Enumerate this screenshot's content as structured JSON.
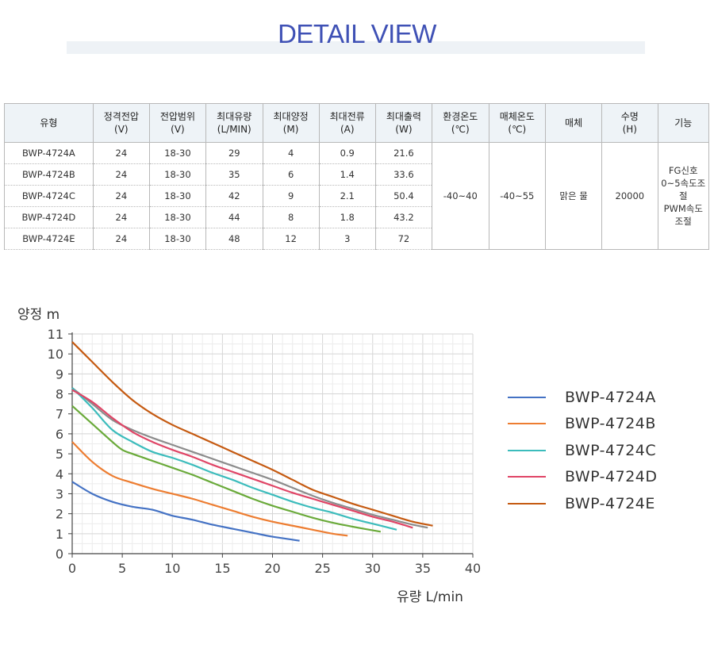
{
  "header": {
    "title": "DETAIL VIEW"
  },
  "table": {
    "headers": [
      [
        "유형",
        ""
      ],
      [
        "정격전압",
        "(V)"
      ],
      [
        "전압범위",
        "(V)"
      ],
      [
        "최대유량",
        "(L/MIN)"
      ],
      [
        "최대양정",
        "(M)"
      ],
      [
        "최대전류",
        "(A)"
      ],
      [
        "최대출력",
        "(W)"
      ],
      [
        "환경온도",
        "(℃)"
      ],
      [
        "매체온도",
        "(℃)"
      ],
      [
        "매체",
        ""
      ],
      [
        "수명",
        "(H)"
      ],
      [
        "기능",
        ""
      ]
    ],
    "rows": [
      [
        "BWP-4724A",
        "24",
        "18-30",
        "29",
        "4",
        "0.9",
        "21.6"
      ],
      [
        "BWP-4724B",
        "24",
        "18-30",
        "35",
        "6",
        "1.4",
        "33.6"
      ],
      [
        "BWP-4724C",
        "24",
        "18-30",
        "42",
        "9",
        "2.1",
        "50.4"
      ],
      [
        "BWP-4724D",
        "24",
        "18-30",
        "44",
        "8",
        "1.8",
        "43.2"
      ],
      [
        "BWP-4724E",
        "24",
        "18-30",
        "48",
        "12",
        "3",
        "72"
      ]
    ],
    "shared": {
      "ambient_temp": "-40~40",
      "media_temp": "-40~55",
      "media": "맑은 물",
      "life": "20000",
      "function_lines": [
        "FG신호",
        "0~5속도조",
        "절",
        "PWM속도",
        "조절"
      ]
    }
  },
  "chart_data": {
    "type": "line",
    "ylabel": "양정 m",
    "xlabel": "유량 L/min",
    "xlim": [
      0,
      40
    ],
    "ylim": [
      0,
      11
    ],
    "xticks": [
      0,
      5,
      10,
      15,
      20,
      25,
      30,
      35,
      40
    ],
    "yticks": [
      0,
      1,
      2,
      3,
      4,
      5,
      6,
      7,
      8,
      9,
      10,
      11
    ],
    "grid": true,
    "legend_position": "right",
    "series": [
      {
        "name": "BWP-4724A",
        "color": "#4472c4",
        "x": [
          0,
          2,
          4,
          6,
          8,
          10,
          12,
          14,
          16,
          18,
          20,
          22.7
        ],
        "y": [
          3.6,
          3.0,
          2.6,
          2.35,
          2.2,
          1.9,
          1.7,
          1.45,
          1.25,
          1.05,
          0.85,
          0.65
        ]
      },
      {
        "name": "BWP-4724B",
        "color": "#ed7d31",
        "x": [
          0,
          2,
          4,
          6,
          8,
          10,
          12,
          14,
          16,
          18,
          20,
          22,
          24,
          26,
          27.5
        ],
        "y": [
          5.6,
          4.6,
          3.9,
          3.55,
          3.25,
          3.0,
          2.75,
          2.45,
          2.15,
          1.85,
          1.6,
          1.4,
          1.2,
          1.0,
          0.9
        ]
      },
      {
        "name": "BWP-4724C",
        "color": "#3cbcbc",
        "x": [
          0,
          2,
          4,
          6,
          8,
          10,
          12,
          14,
          16,
          18,
          20,
          22,
          24,
          26,
          28,
          30,
          32.4
        ],
        "y": [
          8.3,
          7.3,
          6.2,
          5.6,
          5.1,
          4.8,
          4.45,
          4.05,
          3.7,
          3.3,
          2.95,
          2.6,
          2.3,
          2.05,
          1.75,
          1.5,
          1.2
        ]
      },
      {
        "name": "BWP-4724D",
        "color": "#e04566",
        "x": [
          0,
          2,
          4,
          6,
          8,
          10,
          12,
          14,
          16,
          18,
          20,
          22,
          24,
          26,
          28,
          30,
          32,
          34
        ],
        "y": [
          8.2,
          7.6,
          6.8,
          6.1,
          5.6,
          5.2,
          4.85,
          4.45,
          4.1,
          3.75,
          3.4,
          3.05,
          2.75,
          2.45,
          2.15,
          1.85,
          1.6,
          1.3
        ]
      },
      {
        "name": "BWP-4724E",
        "color": "#c55a11",
        "x": [
          0,
          2,
          4,
          6,
          8,
          10,
          12,
          14,
          16,
          18,
          20,
          22,
          24,
          26,
          28,
          30,
          32,
          34,
          36
        ],
        "y": [
          10.6,
          9.6,
          8.6,
          7.7,
          7.0,
          6.45,
          6.0,
          5.55,
          5.1,
          4.65,
          4.2,
          3.7,
          3.2,
          2.85,
          2.5,
          2.2,
          1.9,
          1.6,
          1.4
        ]
      }
    ],
    "extra_series": [
      {
        "color": "#6aaa3a",
        "x": [
          0,
          2,
          4,
          5,
          6,
          8,
          10,
          12,
          14,
          16,
          18,
          20,
          22,
          24,
          26,
          28,
          30.8
        ],
        "y": [
          7.4,
          6.5,
          5.6,
          5.2,
          5.0,
          4.65,
          4.3,
          3.95,
          3.55,
          3.15,
          2.75,
          2.4,
          2.1,
          1.8,
          1.55,
          1.35,
          1.1
        ]
      },
      {
        "color": "#8c8c8c",
        "x": [
          0,
          2,
          4,
          6,
          8,
          10,
          12,
          14,
          16,
          18,
          20,
          22,
          24,
          26,
          28,
          30,
          32,
          34,
          35.5
        ],
        "y": [
          8.3,
          7.5,
          6.7,
          6.2,
          5.8,
          5.45,
          5.1,
          4.75,
          4.4,
          4.05,
          3.7,
          3.3,
          2.9,
          2.55,
          2.25,
          1.95,
          1.7,
          1.45,
          1.3
        ]
      }
    ]
  }
}
